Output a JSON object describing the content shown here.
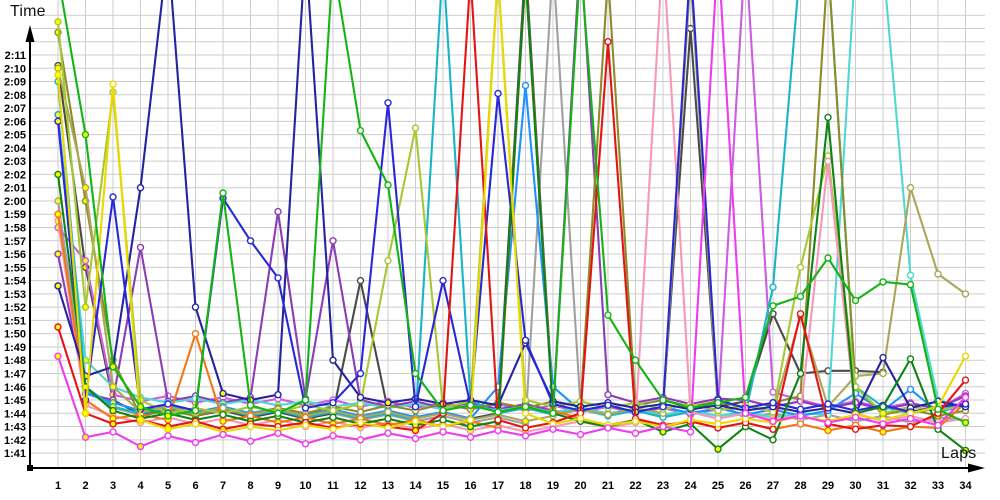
{
  "chart_data": {
    "type": "line",
    "title": "",
    "xlabel": "Laps",
    "ylabel": "Time",
    "grid": true,
    "legend_position": "none",
    "marker": "circle",
    "x_ticks": [
      "1",
      "2",
      "3",
      "4",
      "5",
      "6",
      "7",
      "8",
      "9",
      "10",
      "11",
      "12",
      "13",
      "14",
      "15",
      "16",
      "17",
      "18",
      "19",
      "20",
      "21",
      "22",
      "23",
      "24",
      "25",
      "26",
      "27",
      "28",
      "29",
      "30",
      "31",
      "32",
      "33",
      "34"
    ],
    "y_ticks": [
      "1:41",
      "1:42",
      "1:43",
      "1:44",
      "1:45",
      "1:46",
      "1:47",
      "1:48",
      "1:49",
      "1:50",
      "1:51",
      "1:52",
      "1:53",
      "1:54",
      "1:55",
      "1:56",
      "1:57",
      "1:58",
      "1:59",
      "2:00",
      "2:01",
      "2:02",
      "2:03",
      "2:04",
      "2:05",
      "2:06",
      "2:07",
      "2:08",
      "2:09",
      "2:10",
      "2:11"
    ],
    "y_tick_seconds_start": 101,
    "ylim_seconds": [
      101,
      131
    ],
    "xlim": [
      1,
      34
    ],
    "note_values_are_seconds": "lap time in seconds; 101 = 1:41; values >= 135 represent spikes running off the top of the plot (pit stops)",
    "series": [
      {
        "name": "gray",
        "color": "#a0a0a0",
        "values": [
          120,
          105.8,
          104.4,
          103.9,
          104.3,
          103.8,
          104.2,
          103.7,
          104.1,
          103.6,
          104,
          103.5,
          103.9,
          103.4,
          103.8,
          103.3,
          103.7,
          103.2,
          138,
          104.5,
          103.9,
          104.3,
          103.8,
          104.2,
          104.9,
          103.6,
          104,
          103.5,
          103.9,
          103.4,
          103.8,
          103.3,
          103.7,
          103.5
        ]
      },
      {
        "name": "darkgray",
        "color": "#4a4a4a",
        "values": [
          130.2,
          115,
          105,
          103.9,
          104.3,
          103.8,
          104.2,
          103.7,
          104.1,
          103.6,
          104,
          114,
          104.2,
          103.7,
          104.1,
          103.6,
          104,
          138,
          104.6,
          104.1,
          104.5,
          104,
          104.4,
          133,
          104.5,
          104.9,
          111.5,
          107,
          107.2,
          107.2,
          107.1,
          null,
          null,
          null
        ]
      },
      {
        "name": "orchid",
        "color": "#cc5ce0",
        "values": [
          118,
          115.5,
          105.4,
          104.9,
          105.3,
          104.8,
          105.2,
          104.7,
          105.1,
          104.6,
          105,
          104.5,
          104.9,
          104.4,
          104.8,
          104.3,
          104.7,
          104.2,
          104.6,
          104.1,
          104.5,
          104,
          104.4,
          103.9,
          104.3,
          139,
          105.6,
          105,
          104.5,
          104.9,
          104.4,
          104.8,
          104.3,
          105.5
        ]
      },
      {
        "name": "purple",
        "color": "#8c3cb4",
        "values": [
          116,
          105.5,
          105,
          116.5,
          104.9,
          105.3,
          104.8,
          105.2,
          119.2,
          105.1,
          117,
          105,
          104.5,
          104.9,
          104.4,
          104.8,
          104.3,
          104.7,
          104.2,
          139,
          105.4,
          104.8,
          105.2,
          104.7,
          105.1,
          105,
          104.5,
          104.9,
          104.4,
          104.8,
          104.3,
          104.7,
          104.4,
          105.3
        ]
      },
      {
        "name": "turquoise",
        "color": "#50d8d0",
        "values": [
          126,
          108,
          106,
          105.2,
          104.8,
          105.1,
          104.7,
          105,
          104.6,
          104.9,
          104.5,
          104.8,
          104.4,
          104.7,
          104.3,
          104.6,
          104.2,
          104.5,
          104.1,
          104.4,
          104,
          104.3,
          103.9,
          104.2,
          103.8,
          104.1,
          103.7,
          104,
          103.9,
          138,
          138,
          114.4,
          105,
          104.4
        ]
      },
      {
        "name": "dodgerblue",
        "color": "#1e90ff",
        "values": [
          126.5,
          105.5,
          104.8,
          104.2,
          104.6,
          104.1,
          104.5,
          104,
          104.4,
          103.9,
          104.3,
          103.8,
          104.2,
          103.7,
          104.1,
          103.6,
          106,
          128.7,
          106,
          104.2,
          104.6,
          104.1,
          104.5,
          104,
          104.4,
          103.9,
          104.3,
          103.8,
          104.2,
          105.5,
          104.2,
          105.8,
          104.1,
          104.6
        ]
      },
      {
        "name": "cyan",
        "color": "#18b4c8",
        "values": [
          129,
          106,
          104.5,
          104,
          104.4,
          103.9,
          104.3,
          103.8,
          104.2,
          103.7,
          104.1,
          103.6,
          104,
          103.5,
          138,
          105,
          104,
          104.4,
          103.9,
          104.3,
          103.8,
          104.2,
          103.7,
          104.1,
          103.6,
          104,
          113.5,
          138,
          138,
          106,
          104.5,
          104,
          104.4,
          104.6
        ]
      },
      {
        "name": "olive",
        "color": "#8c8c28",
        "values": [
          132.7,
          120,
          108,
          103.8,
          104.2,
          103.8,
          104.3,
          103.9,
          104.4,
          104,
          104.5,
          104.1,
          104.6,
          104.2,
          104.7,
          104.3,
          104.8,
          104.4,
          104.9,
          104.5,
          137,
          104.6,
          105,
          104.5,
          104.9,
          104.4,
          104.8,
          105.3,
          138,
          106,
          103.9,
          104.3,
          103.8,
          104.2
        ]
      },
      {
        "name": "khaki",
        "color": "#aaa858",
        "values": [
          130,
          121,
          106,
          104.1,
          104.5,
          104,
          104.4,
          103.9,
          104.3,
          103.8,
          104.2,
          103.7,
          104.1,
          103.6,
          104,
          103.5,
          103.9,
          103.4,
          103.8,
          104.3,
          103.9,
          104.4,
          104,
          137,
          104.2,
          104.6,
          104.1,
          111.3,
          104.5,
          106.8,
          107,
          121,
          114.5,
          113
        ]
      },
      {
        "name": "yellowgreen",
        "color": "#a6c832",
        "values": [
          133.5,
          112,
          128.2,
          105,
          104,
          104.4,
          104,
          104.5,
          104.1,
          104.6,
          104.2,
          104.7,
          115.5,
          125.5,
          104.4,
          104.9,
          137,
          105,
          104.5,
          104.9,
          104.4,
          104.8,
          104.3,
          104.7,
          104.2,
          104.6,
          104.1,
          115,
          123.4,
          106,
          104,
          104.5,
          104.2,
          104.6
        ]
      },
      {
        "name": "pink",
        "color": "#f898b8",
        "values": [
          118.5,
          104.6,
          103.8,
          103.3,
          103.7,
          103.2,
          103.6,
          103.1,
          103.5,
          103,
          103.4,
          102.9,
          103.3,
          102.8,
          103.2,
          102.7,
          103.1,
          102.6,
          103,
          103.4,
          102.9,
          103.3,
          139,
          104.1,
          103.6,
          104,
          103.5,
          103.9,
          123,
          104,
          103.4,
          103.8,
          103.3,
          103.6
        ]
      },
      {
        "name": "orange",
        "color": "#f07818",
        "values": [
          119,
          105,
          103.6,
          103.9,
          103.5,
          110,
          103.4,
          103.8,
          103.3,
          103.7,
          103.2,
          103.6,
          103.1,
          103.5,
          103,
          103.4,
          102.9,
          137,
          104.2,
          103.6,
          103.1,
          103.5,
          103,
          103.4,
          102.9,
          103.3,
          102.8,
          103.2,
          102.7,
          103.1,
          102.6,
          103,
          102.9,
          104.8
        ]
      },
      {
        "name": "navy",
        "color": "#2424a0",
        "values": [
          113.6,
          106.8,
          107.5,
          121,
          139,
          112,
          105.5,
          105,
          105.4,
          139,
          108,
          105.2,
          104.8,
          105.1,
          104.7,
          105,
          104.6,
          109.3,
          104.9,
          104.5,
          104.8,
          104.4,
          104.7,
          104.3,
          104.6,
          104.2,
          104.5,
          104.1,
          104.4,
          104,
          108.2,
          104.4,
          104.9,
          104.5
        ]
      },
      {
        "name": "blue",
        "color": "#2828d8",
        "values": [
          126,
          105,
          120.3,
          104.3,
          104.7,
          104.2,
          120.2,
          117,
          114.2,
          104.4,
          104.8,
          107,
          127.4,
          104.5,
          114,
          104.6,
          128.1,
          109.5,
          104.7,
          104.2,
          104.6,
          104.1,
          104.5,
          138,
          105,
          104.4,
          104.8,
          104.3,
          104.7,
          104.2,
          104.6,
          104.1,
          104.5,
          104.7
        ]
      },
      {
        "name": "darkgreen",
        "color": "#0e8414",
        "values": [
          122,
          106,
          104.2,
          103.6,
          104,
          103.5,
          103.9,
          103.4,
          103.8,
          103.3,
          103.7,
          103.2,
          103.6,
          103.1,
          103.5,
          103,
          103.4,
          137,
          104,
          103.4,
          103,
          103.5,
          102.6,
          103.2,
          101.3,
          103,
          102,
          107,
          126.3,
          104,
          104.5,
          108.1,
          102.8,
          101.2
        ]
      },
      {
        "name": "red",
        "color": "#e41414",
        "values": [
          110.5,
          104,
          103.2,
          103.5,
          103,
          103.4,
          102.8,
          103.2,
          103,
          103.3,
          102.9,
          103.2,
          103,
          102.7,
          104,
          137,
          103.5,
          102.9,
          103.3,
          104,
          132,
          103.6,
          103.1,
          103.4,
          102.9,
          103.3,
          102.8,
          111.5,
          103.2,
          102.8,
          103.1,
          103,
          104,
          106.5
        ]
      },
      {
        "name": "yellow",
        "color": "#ecd800",
        "values": [
          129.5,
          104,
          128.8,
          103.5,
          102.8,
          103.2,
          102.6,
          103,
          102.7,
          103.1,
          102.8,
          103.3,
          102.9,
          103.4,
          103,
          103.5,
          137,
          104,
          103.2,
          103.6,
          103.1,
          103.4,
          103,
          103.5,
          103.2,
          103.6,
          103.3,
          103.8,
          103.4,
          103.9,
          103.5,
          104,
          104.5,
          108.3
        ]
      },
      {
        "name": "magenta",
        "color": "#ee3cee",
        "values": [
          108.3,
          102.2,
          102.6,
          101.5,
          102.3,
          101.8,
          102.4,
          101.9,
          102.5,
          101.7,
          102.3,
          102,
          102.5,
          102.1,
          102.6,
          102.2,
          102.7,
          102.3,
          102.8,
          102.4,
          102.9,
          102.5,
          103,
          102.6,
          139,
          104,
          103.4,
          103.8,
          103.3,
          103.7,
          103.2,
          103.6,
          103.1,
          105.2
        ]
      },
      {
        "name": "green",
        "color": "#14b414",
        "values": [
          137,
          125,
          107.5,
          104.5,
          103.8,
          104.2,
          120.6,
          104.6,
          104,
          105,
          138,
          125.3,
          121.2,
          107,
          104.2,
          104.6,
          104.1,
          104.5,
          104,
          138,
          111.4,
          108,
          105,
          104.4,
          104.8,
          105.2,
          112.1,
          112.8,
          115.7,
          112.5,
          113.9,
          113.7,
          104.3,
          103.3
        ]
      }
    ]
  },
  "colors": {
    "background": "#ffffff",
    "grid": "#cdcdcd",
    "axis": "#000000",
    "tick_text": "#000000",
    "marker_best_fill": "#ffff00",
    "marker_fill": "#ffffff"
  }
}
